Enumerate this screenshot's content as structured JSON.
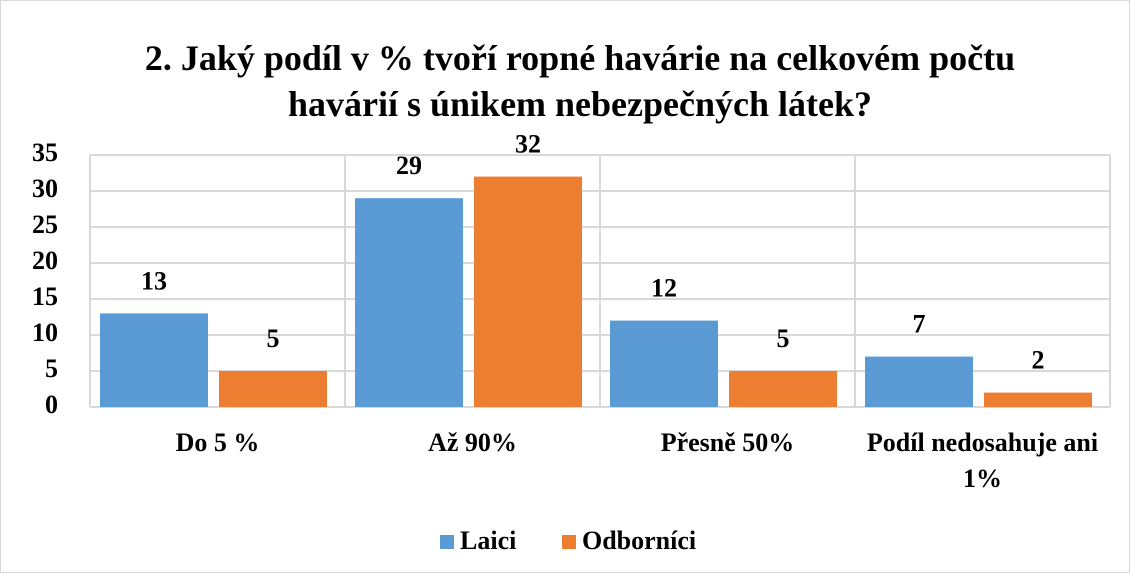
{
  "chart_data": {
    "type": "bar",
    "title": "2. Jaký podíl v % tvoří ropné havárie na celkovém počtu havárií s únikem nebezpečných látek?",
    "categories": [
      "Do 5 %",
      "Až 90%",
      "Přesně 50%",
      "Podíl nedosahuje ani 1%"
    ],
    "series": [
      {
        "name": "Laici",
        "color": "#5b9bd5",
        "values": [
          13,
          29,
          12,
          7
        ]
      },
      {
        "name": "Odborníci",
        "color": "#ed7d31",
        "values": [
          5,
          32,
          5,
          2
        ]
      }
    ],
    "ylim": [
      0,
      35
    ],
    "yticks": [
      0,
      5,
      10,
      15,
      20,
      25,
      30,
      35
    ],
    "grid": true,
    "legend": "bottom"
  }
}
